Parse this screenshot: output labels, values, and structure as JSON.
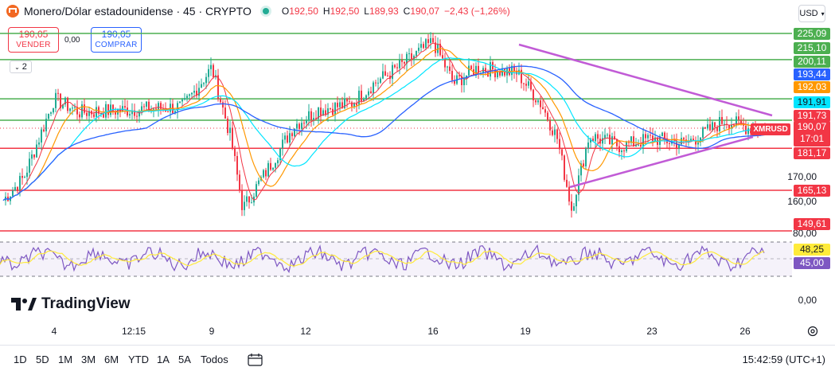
{
  "header": {
    "title": "Monero/Dólar estadounidense · 45 · CRYPTO",
    "ohlc": [
      {
        "k": "O",
        "v": "192,50"
      },
      {
        "k": "H",
        "v": "192,50"
      },
      {
        "k": "L",
        "v": "189,93"
      },
      {
        "k": "C",
        "v": "190,07"
      },
      {
        "k": "",
        "v": "−2,43 (−1,26%)"
      }
    ],
    "currency": "USD"
  },
  "trade": {
    "sell_price": "190,05",
    "sell_label": "VENDER",
    "buy_price": "190,05",
    "buy_label": "COMPRAR",
    "spread": "0,00"
  },
  "indicator_count": "2",
  "price_axis": {
    "plain_labels": [
      "170,00",
      "160,00",
      "80,00",
      "0,00"
    ],
    "tags": [
      {
        "text": "225,09",
        "color": "#4caf50"
      },
      {
        "text": "215,10",
        "color": "#4caf50"
      },
      {
        "text": "200,11",
        "color": "#4caf50"
      },
      {
        "text": "193,44",
        "color": "#2962ff"
      },
      {
        "text": "192,03",
        "color": "#ff9800"
      },
      {
        "text": "191,91",
        "color": "#00e5ff"
      },
      {
        "text": "191,73",
        "color": "#f23645"
      },
      {
        "text": "181,17",
        "color": "#f23645"
      },
      {
        "text": "165,13",
        "color": "#f23645"
      },
      {
        "text": "149,61",
        "color": "#f23645"
      },
      {
        "text": "48,25",
        "color": "#ffeb3b"
      },
      {
        "text": "45,00",
        "color": "#7e57c2"
      }
    ],
    "current_price": "190,07",
    "countdown": "17:01",
    "symbol": "XMRUSD"
  },
  "x_axis": {
    "labels": [
      "4",
      "12:15",
      "9",
      "12",
      "16",
      "19",
      "23",
      "26"
    ]
  },
  "brand": "TradingView",
  "toolbar": {
    "ranges": [
      "1D",
      "5D",
      "1M",
      "3M",
      "6M",
      "YTD",
      "1A",
      "5A",
      "Todos"
    ],
    "clock": "15:42:59 (UTC+1)"
  },
  "colors": {
    "up": "#22ab94",
    "down": "#f23645",
    "ma_fast": "#f23645",
    "ma_mid": "#ff9800",
    "ma_cyan": "#00e5ff",
    "ma_slow": "#2962ff",
    "trendline": "#c15bd6",
    "rsi_line": "#7e57c2",
    "rsi_ma": "#ffeb3b",
    "support_green": "#4caf50"
  }
}
